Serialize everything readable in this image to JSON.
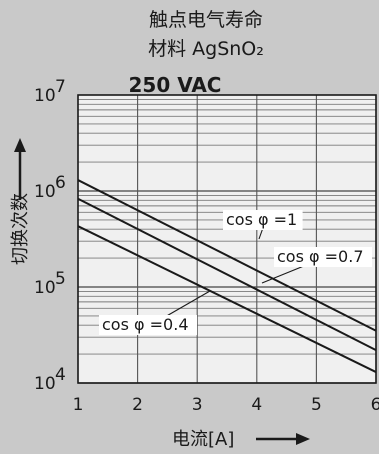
{
  "chart_data": {
    "type": "line",
    "title": "触点电气寿命",
    "subtitle": "材料 AgSnO₂",
    "annotation": "250 VAC",
    "xlabel": "电流[A]",
    "ylabel": "切换次数",
    "x_ticks": [
      "1",
      "2",
      "3",
      "4",
      "5",
      "6"
    ],
    "y_ticks": [
      {
        "value": 10000,
        "base": "10",
        "exp": "4"
      },
      {
        "value": 100000,
        "base": "10",
        "exp": "5"
      },
      {
        "value": 1000000,
        "base": "10",
        "exp": "6"
      },
      {
        "value": 10000000,
        "base": "10",
        "exp": "7"
      }
    ],
    "xlim": [
      1,
      6
    ],
    "ylim": [
      10000,
      10000000
    ],
    "yscale": "log",
    "grid": true,
    "series": [
      {
        "name": "cos φ =1",
        "x": [
          1,
          6
        ],
        "y": [
          1300000,
          35000
        ]
      },
      {
        "name": "cos φ =0.7",
        "x": [
          1,
          6
        ],
        "y": [
          830000,
          22000
        ]
      },
      {
        "name": "cos φ =0.4",
        "x": [
          1,
          6
        ],
        "y": [
          430000,
          13000
        ]
      }
    ],
    "colors": {
      "background": "#c9c9c9",
      "plot": "#f0f0f0",
      "line": "#1a1a1a",
      "grid": "#777777"
    }
  }
}
